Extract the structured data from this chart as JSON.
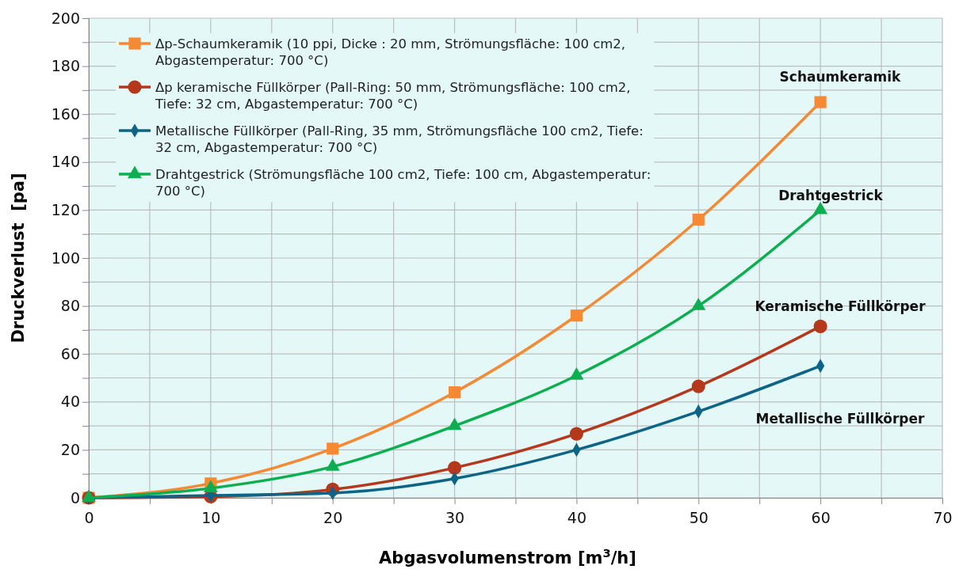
{
  "chart_data": {
    "type": "line",
    "xlabel": "Abgasvolumenstrom [m$^{3}$/h]",
    "ylabel": "Druckverlust  [pa]",
    "x": [
      0,
      10,
      20,
      30,
      40,
      50,
      60
    ],
    "xlim": [
      0,
      70
    ],
    "xticks": [
      0,
      {
        "value": 5,
        "label": null
      },
      10,
      {
        "value": 15,
        "label": null
      },
      20,
      {
        "value": 25,
        "label": null
      },
      30,
      {
        "value": 35,
        "label": null
      },
      40,
      {
        "value": 45,
        "label": null
      },
      50,
      {
        "value": 55,
        "label": null
      },
      60,
      {
        "value": 65,
        "label": null
      },
      70
    ],
    "ylim": [
      0,
      200
    ],
    "yticks": [
      0,
      {
        "value": 10,
        "label": null
      },
      20,
      {
        "value": 30,
        "label": null
      },
      40,
      {
        "value": 50,
        "label": null
      },
      60,
      {
        "value": 70,
        "label": null
      },
      80,
      {
        "value": 90,
        "label": null
      },
      100,
      {
        "value": 110,
        "label": null
      },
      120,
      {
        "value": 130,
        "label": null
      },
      140,
      {
        "value": 150,
        "label": null
      },
      160,
      {
        "value": 170,
        "label": null
      },
      180,
      {
        "value": 190,
        "label": null
      },
      200
    ],
    "grid": true,
    "legend": "top left",
    "series": [
      {
        "name": "Δp-Schaumkeramik (10 ppi, Dicke : 20 mm, Strömungsfläche: 100 cm2, Abgastemperatur: 700 °C)",
        "color": "#f68933",
        "marker": "square",
        "values": [
          0,
          6,
          20.5,
          44,
          76,
          116,
          165
        ]
      },
      {
        "name": "Δp keramische Füllkörper (Pall-Ring: 50 mm, Strömungsfläche: 100 cm2, Tiefe: 32 cm, Abgastemperatur: 700 °C)",
        "color": "#b5381c",
        "marker": "circle",
        "values": [
          0,
          0.5,
          3.5,
          12.5,
          26.7,
          46.5,
          71.5
        ]
      },
      {
        "name": "Metallische Füllkörper (Pall-Ring, 35 mm, Strömungsfläche 100 cm2, Tiefe: 32 cm, Abgastemperatur: 700 °C)",
        "color": "#0e6485",
        "marker": "diamond",
        "values": [
          0,
          1,
          2,
          8,
          20,
          36,
          55
        ]
      },
      {
        "name": "Drahtgestrick (Strömungsfläche 100 cm2, Tiefe: 100 cm, Abgastemperatur: 700 °C)",
        "color": "#0caf4f",
        "marker": "triangle",
        "values": [
          0,
          4,
          13,
          30,
          51,
          80,
          120
        ]
      }
    ],
    "annotations": [
      "Schaumkeramik",
      "Drahtgestrick",
      "Keramische Füllkörper",
      "Metallische Füllkörper"
    ]
  }
}
